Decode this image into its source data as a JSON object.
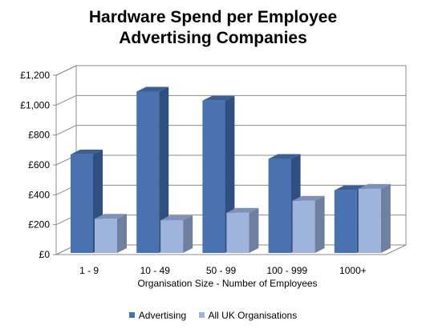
{
  "chart_data": {
    "type": "bar",
    "title": "Hardware Spend per Employee\nAdvertising Companies",
    "title_lines": [
      "Hardware Spend per Employee",
      "Advertising Companies"
    ],
    "xlabel": "Organisation Size - Number of Employees",
    "ylabel": "",
    "categories": [
      "1 - 9",
      "10 - 49",
      "50 - 99",
      "100 - 999",
      "1000+"
    ],
    "y_ticks": [
      "£0",
      "£200",
      "£400",
      "£600",
      "£800",
      "£1,000",
      "£1,200"
    ],
    "ylim": [
      0,
      1200
    ],
    "grid": true,
    "legend_position": "bottom",
    "series": [
      {
        "name": "Advertising",
        "values": [
          670,
          1090,
          1030,
          640,
          430
        ],
        "color": "#4a72b0",
        "side_color": "#2f4f80",
        "top_color": "#3a5f96"
      },
      {
        "name": "All UK Organisations",
        "values": [
          240,
          230,
          280,
          360,
          440
        ],
        "color": "#9eb4dd",
        "side_color": "#6f7fa0",
        "top_color": "#7e90b8"
      }
    ]
  }
}
